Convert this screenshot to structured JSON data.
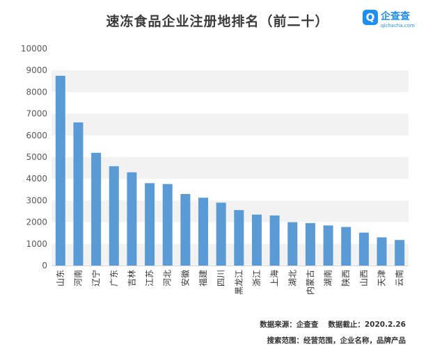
{
  "chart_data": {
    "type": "bar",
    "title": "速冻食品企业注册地排名（前二十）",
    "categories": [
      "山东",
      "河南",
      "辽宁",
      "广东",
      "吉林",
      "江苏",
      "河北",
      "安徽",
      "福建",
      "四川",
      "黑龙江",
      "浙江",
      "上海",
      "湖北",
      "内蒙古",
      "湖南",
      "陕西",
      "山西",
      "天津",
      "云南"
    ],
    "values": [
      8750,
      6600,
      5200,
      4580,
      4300,
      3800,
      3760,
      3300,
      3130,
      2900,
      2560,
      2350,
      2310,
      2000,
      1960,
      1850,
      1780,
      1520,
      1300,
      1180
    ],
    "yticks": [
      "0",
      "1000",
      "2000",
      "3000",
      "4000",
      "5000",
      "6000",
      "7000",
      "8000",
      "9000",
      "10000"
    ],
    "ylim": [
      0,
      10000
    ],
    "bar_color": "#5b9bd5",
    "grid_band_color": "#f2f2f2"
  },
  "logo": {
    "mark": "Q",
    "name": "企查查",
    "domain": "qichacha.com",
    "color": "#1f8ef1"
  },
  "footer": {
    "source": "数据来源：企查查　 数据截止：2020.2.26",
    "scope": "搜索范围：经营范围，企业名称，品牌产品"
  }
}
